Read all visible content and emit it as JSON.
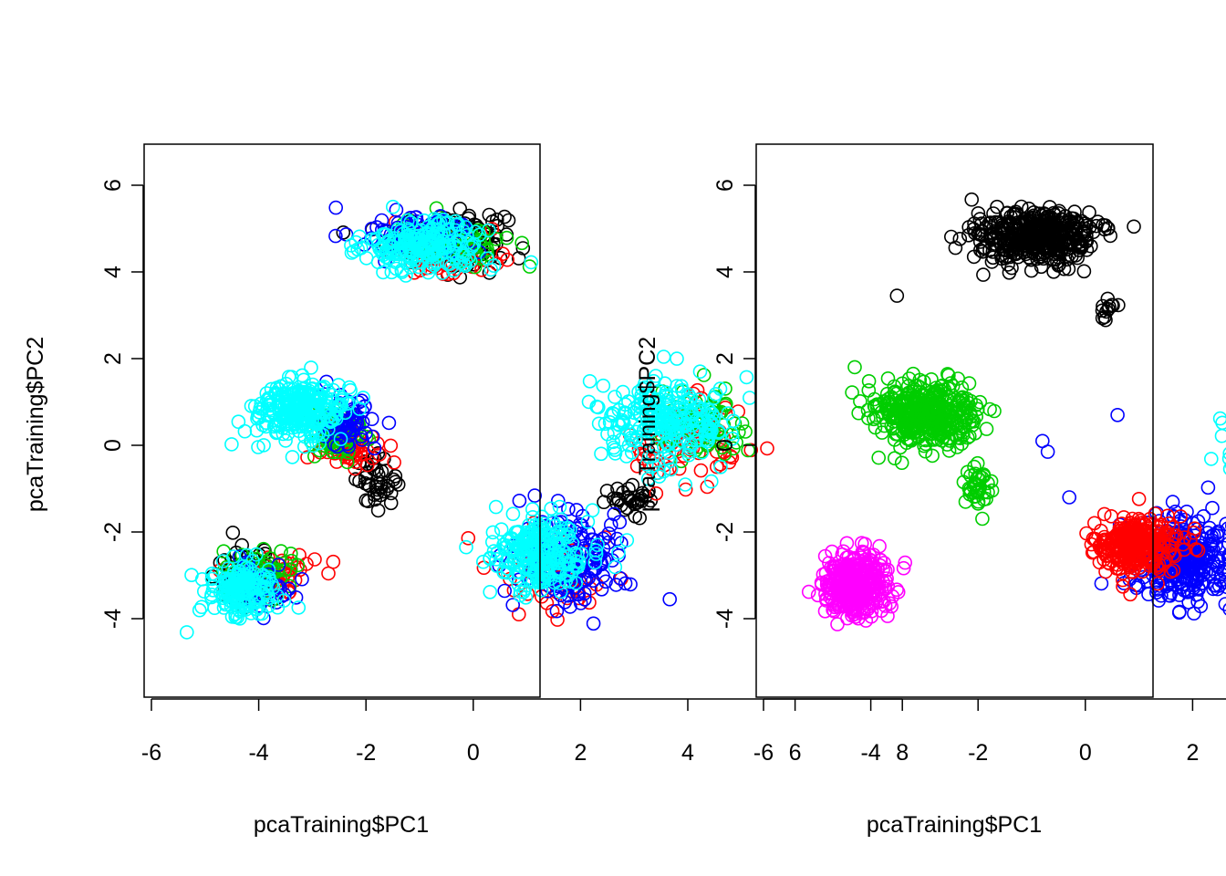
{
  "chart_data": [
    {
      "type": "scatter",
      "title": "",
      "xlabel": "pcaTraining$PC1",
      "ylabel": "pcaTraining$PC2",
      "xlim": [
        -6.1,
        8.5
      ],
      "ylim": [
        -5.8,
        6.9
      ],
      "xticks": [
        -6,
        -4,
        -2,
        0,
        2,
        4,
        6,
        8
      ],
      "yticks": [
        -4,
        -2,
        0,
        2,
        4,
        6
      ],
      "xtick_labels": [
        "-6",
        "-4",
        "-2",
        "0",
        "2",
        "4",
        "6",
        "8"
      ],
      "ytick_labels": [
        "-4",
        "-2",
        "0",
        "2",
        "4",
        "6"
      ],
      "marker": "open-circle",
      "grid": false,
      "legend": "none",
      "clusters": [
        {
          "color": "#000000",
          "center": [
            -0.5,
            4.8
          ],
          "spread": [
            1.0,
            0.55
          ],
          "n": 140
        },
        {
          "color": "#000000",
          "center": [
            -1.8,
            -0.8
          ],
          "spread": [
            0.35,
            0.5
          ],
          "n": 40
        },
        {
          "color": "#000000",
          "center": [
            3.0,
            -1.3
          ],
          "spread": [
            0.5,
            0.3
          ],
          "n": 30
        },
        {
          "color": "#000000",
          "center": [
            -4.3,
            -3.0
          ],
          "spread": [
            0.6,
            0.6
          ],
          "n": 40
        },
        {
          "color": "#ff0000",
          "center": [
            -0.5,
            4.4
          ],
          "spread": [
            0.9,
            0.5
          ],
          "n": 60
        },
        {
          "color": "#ff0000",
          "center": [
            -2.3,
            0.0
          ],
          "spread": [
            0.5,
            0.4
          ],
          "n": 60
        },
        {
          "color": "#ff0000",
          "center": [
            4.0,
            0.0
          ],
          "spread": [
            1.0,
            0.9
          ],
          "n": 80
        },
        {
          "color": "#ff0000",
          "center": [
            -3.8,
            -3.0
          ],
          "spread": [
            0.8,
            0.5
          ],
          "n": 50
        },
        {
          "color": "#ff0000",
          "center": [
            1.5,
            -2.8
          ],
          "spread": [
            1.0,
            0.9
          ],
          "n": 60
        },
        {
          "color": "#00cd00",
          "center": [
            -0.4,
            4.7
          ],
          "spread": [
            0.9,
            0.5
          ],
          "n": 60
        },
        {
          "color": "#00cd00",
          "center": [
            -2.5,
            0.3
          ],
          "spread": [
            0.6,
            0.6
          ],
          "n": 60
        },
        {
          "color": "#00cd00",
          "center": [
            4.3,
            0.4
          ],
          "spread": [
            0.8,
            0.7
          ],
          "n": 70
        },
        {
          "color": "#00cd00",
          "center": [
            -4.0,
            -3.0
          ],
          "spread": [
            0.7,
            0.6
          ],
          "n": 50
        },
        {
          "color": "#0000ff",
          "center": [
            -1.0,
            4.9
          ],
          "spread": [
            0.9,
            0.4
          ],
          "n": 70
        },
        {
          "color": "#0000ff",
          "center": [
            -2.3,
            0.5
          ],
          "spread": [
            0.5,
            0.6
          ],
          "n": 60
        },
        {
          "color": "#0000ff",
          "center": [
            1.8,
            -2.6
          ],
          "spread": [
            1.0,
            1.0
          ],
          "n": 160
        },
        {
          "color": "#0000ff",
          "center": [
            -4.0,
            -3.2
          ],
          "spread": [
            0.6,
            0.6
          ],
          "n": 50
        },
        {
          "color": "#00ffff",
          "center": [
            -0.9,
            4.6
          ],
          "spread": [
            1.0,
            0.5
          ],
          "n": 220
        },
        {
          "color": "#00ffff",
          "center": [
            -3.2,
            0.8
          ],
          "spread": [
            0.8,
            0.6
          ],
          "n": 260
        },
        {
          "color": "#00ffff",
          "center": [
            3.6,
            0.6
          ],
          "spread": [
            1.1,
            0.9
          ],
          "n": 240
        },
        {
          "color": "#00ffff",
          "center": [
            1.2,
            -2.5
          ],
          "spread": [
            0.8,
            0.8
          ],
          "n": 240
        },
        {
          "color": "#00ffff",
          "center": [
            -4.3,
            -3.3
          ],
          "spread": [
            0.6,
            0.6
          ],
          "n": 170
        }
      ],
      "outliers": [
        {
          "color": "#000000",
          "x": 7.9,
          "y": 3.45
        }
      ]
    },
    {
      "type": "scatter",
      "title": "",
      "xlabel": "pcaTraining$PC1",
      "ylabel": "pcaTraining$PC2",
      "xlim": [
        -6.1,
        8.5
      ],
      "ylim": [
        -5.8,
        6.9
      ],
      "xticks": [
        -6,
        -4,
        -2,
        0,
        2,
        4,
        6,
        8
      ],
      "yticks": [
        -4,
        -2,
        0,
        2,
        4,
        6
      ],
      "xtick_labels": [
        "-6",
        "-4",
        "-2",
        "0",
        "2",
        "4",
        "6",
        "8"
      ],
      "ytick_labels": [
        "-4",
        "-2",
        "0",
        "2",
        "4",
        "6"
      ],
      "marker": "open-circle",
      "grid": false,
      "legend": "none",
      "clusters": [
        {
          "color": "#000000",
          "center": [
            -0.9,
            4.8
          ],
          "spread": [
            1.0,
            0.55
          ],
          "n": 420
        },
        {
          "color": "#000000",
          "center": [
            0.4,
            3.1
          ],
          "spread": [
            0.2,
            0.25
          ],
          "n": 12
        },
        {
          "color": "#00cd00",
          "center": [
            -3.0,
            0.7
          ],
          "spread": [
            0.9,
            0.7
          ],
          "n": 380
        },
        {
          "color": "#00cd00",
          "center": [
            -2.0,
            -1.0
          ],
          "spread": [
            0.3,
            0.45
          ],
          "n": 40
        },
        {
          "color": "#ff00ff",
          "center": [
            -4.3,
            -3.2
          ],
          "spread": [
            0.6,
            0.65
          ],
          "n": 380
        },
        {
          "color": "#0000ff",
          "center": [
            1.9,
            -2.6
          ],
          "spread": [
            0.9,
            0.9
          ],
          "n": 320
        },
        {
          "color": "#ff0000",
          "center": [
            1.0,
            -2.3
          ],
          "spread": [
            0.7,
            0.6
          ],
          "n": 300
        },
        {
          "color": "#00ffff",
          "center": [
            3.8,
            0.4
          ],
          "spread": [
            0.9,
            0.9
          ],
          "n": 420
        }
      ],
      "outliers": [
        {
          "color": "#0000ff",
          "x": 7.9,
          "y": 3.45
        },
        {
          "color": "#0000ff",
          "x": -0.8,
          "y": 0.1
        },
        {
          "color": "#0000ff",
          "x": -0.7,
          "y": -0.15
        },
        {
          "color": "#0000ff",
          "x": 0.6,
          "y": 0.7
        },
        {
          "color": "#0000ff",
          "x": -0.3,
          "y": -1.2
        }
      ]
    }
  ]
}
